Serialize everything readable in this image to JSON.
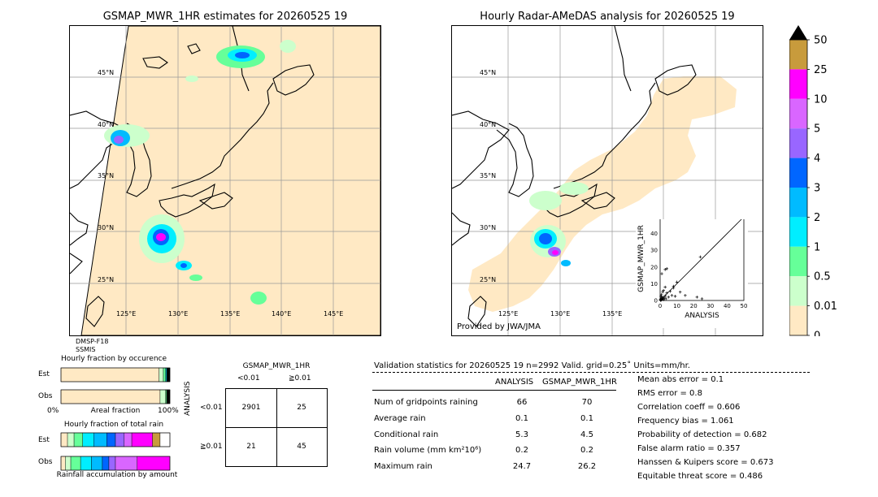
{
  "left_map": {
    "title": "GSMAP_MWR_1HR estimates for 20260525 19",
    "lat_labels": [
      "45°N",
      "40°N",
      "35°N",
      "30°N",
      "25°N"
    ],
    "lon_labels": [
      "125°E",
      "130°E",
      "135°E",
      "140°E",
      "145°E"
    ],
    "footer_lines": [
      "DMSP-F18",
      "SSMIS"
    ]
  },
  "right_map": {
    "title": "Hourly Radar-AMeDAS analysis for 20260525 19",
    "lat_labels": [
      "45°N",
      "40°N",
      "35°N",
      "30°N",
      "25°N"
    ],
    "lon_labels": [
      "125°E",
      "130°E",
      "135°E"
    ],
    "credit": "Provided by JWA/JMA"
  },
  "colorbar": {
    "labels": [
      "50",
      "25",
      "10",
      "5",
      "4",
      "3",
      "2",
      "1",
      "0.5",
      "0.01",
      "0"
    ],
    "colors": [
      "#c89b3c",
      "#ff00ff",
      "#d966ff",
      "#9966ff",
      "#0066ff",
      "#00bbff",
      "#00eeff",
      "#66ff99",
      "#ccffcc",
      "#ffe9c4"
    ],
    "over_color": "#000000"
  },
  "chart_data": [
    {
      "type": "scatter",
      "xlabel": "ANALYSIS",
      "ylabel": "GSMAP_MWR_1HR",
      "xlim": [
        0,
        50
      ],
      "ylim": [
        0,
        50
      ],
      "ticks": [
        "0",
        "10",
        "20",
        "30",
        "40",
        "50"
      ],
      "diagonal": true,
      "points": [
        [
          0.3,
          0.5
        ],
        [
          0.5,
          1.0
        ],
        [
          0.8,
          0.3
        ],
        [
          1.0,
          1.5
        ],
        [
          1.2,
          0.8
        ],
        [
          1.5,
          2.0
        ],
        [
          1.8,
          1.2
        ],
        [
          2.0,
          0.5
        ],
        [
          0.5,
          2.5
        ],
        [
          2.5,
          1.5
        ],
        [
          3.0,
          2.8
        ],
        [
          3.5,
          1.0
        ],
        [
          0.8,
          3.5
        ],
        [
          4.0,
          4.5
        ],
        [
          1.5,
          5.0
        ],
        [
          5.0,
          2.0
        ],
        [
          2.0,
          6.0
        ],
        [
          6.0,
          5.5
        ],
        [
          7.0,
          3.0
        ],
        [
          3.0,
          8.0
        ],
        [
          8.0,
          7.5
        ],
        [
          9.0,
          2.5
        ],
        [
          1.0,
          16.0
        ],
        [
          3.0,
          18.5
        ],
        [
          4.0,
          19.0
        ],
        [
          8.0,
          8.5
        ],
        [
          10.0,
          11.0
        ],
        [
          12.0,
          5.0
        ],
        [
          15.0,
          3.0
        ],
        [
          24.0,
          26.0
        ],
        [
          25.0,
          1.0
        ],
        [
          22.0,
          2.0
        ],
        [
          0.2,
          0.2
        ],
        [
          0.4,
          0.1
        ],
        [
          0.1,
          0.4
        ],
        [
          0.6,
          0.6
        ]
      ]
    },
    {
      "type": "bar",
      "title": "Hourly fraction by occurence",
      "xlabel": "Areal fraction",
      "x_ticks": [
        "0%",
        "100%"
      ],
      "categories": [
        "Est",
        "Obs"
      ],
      "series": [
        {
          "segments": [
            {
              "color": "#ffe9c4",
              "value": 0.9
            },
            {
              "color": "#ccffcc",
              "value": 0.04
            },
            {
              "color": "#66ff99",
              "value": 0.02
            },
            {
              "color": "#00eeff",
              "value": 0.01
            },
            {
              "color": "#000000",
              "value": 0.03
            }
          ]
        },
        {
          "segments": [
            {
              "color": "#ffe9c4",
              "value": 0.91
            },
            {
              "color": "#ccffcc",
              "value": 0.05
            },
            {
              "color": "#66ff99",
              "value": 0.01
            },
            {
              "color": "#000000",
              "value": 0.03
            }
          ]
        }
      ]
    },
    {
      "type": "bar",
      "title": "Hourly fraction of total rain",
      "xlabel": "Rainfall accumulation by amount",
      "categories": [
        "Est",
        "Obs"
      ],
      "series": [
        {
          "segments": [
            {
              "color": "#ffe9c4",
              "value": 0.06
            },
            {
              "color": "#ccffcc",
              "value": 0.06
            },
            {
              "color": "#66ff99",
              "value": 0.08
            },
            {
              "color": "#00eeff",
              "value": 0.1
            },
            {
              "color": "#00bbff",
              "value": 0.12
            },
            {
              "color": "#0066ff",
              "value": 0.08
            },
            {
              "color": "#9966ff",
              "value": 0.08
            },
            {
              "color": "#d966ff",
              "value": 0.07
            },
            {
              "color": "#ff00ff",
              "value": 0.19
            },
            {
              "color": "#c89b3c",
              "value": 0.07
            },
            {
              "color": "#ffffff",
              "value": 0.09
            }
          ]
        },
        {
          "segments": [
            {
              "color": "#ffe9c4",
              "value": 0.04
            },
            {
              "color": "#ccffcc",
              "value": 0.05
            },
            {
              "color": "#66ff99",
              "value": 0.09
            },
            {
              "color": "#00eeff",
              "value": 0.1
            },
            {
              "color": "#00bbff",
              "value": 0.1
            },
            {
              "color": "#0066ff",
              "value": 0.06
            },
            {
              "color": "#9966ff",
              "value": 0.06
            },
            {
              "color": "#d966ff",
              "value": 0.2
            },
            {
              "color": "#ff00ff",
              "value": 0.3
            }
          ]
        }
      ]
    }
  ],
  "contingency": {
    "title": "GSMAP_MWR_1HR",
    "col_labels": [
      "<0.01",
      "≧0.01"
    ],
    "row_axis": "ANALYSIS",
    "row_labels": [
      "<0.01",
      "≧0.01"
    ],
    "cells": [
      [
        "2901",
        "25"
      ],
      [
        "21",
        "45"
      ]
    ]
  },
  "validation": {
    "header": "Validation statistics for 20260525 19  n=2992 Valid. grid=0.25˚ Units=mm/hr.",
    "col_analysis": "ANALYSIS",
    "col_gsmap": "GSMAP_MWR_1HR",
    "rows": [
      {
        "label": "Num of gridpoints raining",
        "analysis": "66",
        "gsmap": "70"
      },
      {
        "label": "Average rain",
        "analysis": "0.1",
        "gsmap": "0.1"
      },
      {
        "label": "Conditional rain",
        "analysis": "5.3",
        "gsmap": "4.5"
      },
      {
        "label": "Rain volume (mm km²10⁶)",
        "analysis": "0.2",
        "gsmap": "0.2"
      },
      {
        "label": "Maximum rain",
        "analysis": "24.7",
        "gsmap": "26.2"
      }
    ],
    "scores": [
      "Mean abs error =    0.1",
      "RMS error =    0.8",
      "Correlation coeff =  0.606",
      "Frequency bias =  1.061",
      "Probability of detection =  0.682",
      "False alarm ratio =  0.357",
      "Hanssen & Kuipers score =  0.673",
      "Equitable threat score =  0.486"
    ]
  }
}
